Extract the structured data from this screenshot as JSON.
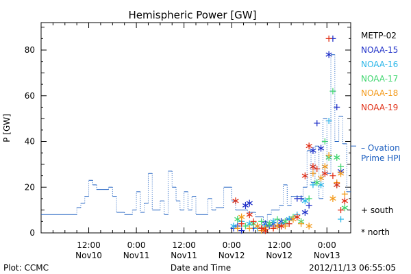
{
  "chart_data": {
    "type": "scatter",
    "title": "Hemispheric Power [GW]",
    "ylabel": "P [GW]",
    "xlabel": "Date and Time",
    "xlim": [
      0,
      78
    ],
    "ylim": [
      0,
      92
    ],
    "x_unit": "hours since Nov10 00:00",
    "x_ticks": [
      {
        "value": 12,
        "label": [
          "12:00",
          "Nov10"
        ]
      },
      {
        "value": 24,
        "label": [
          "0:00",
          "Nov11"
        ]
      },
      {
        "value": 36,
        "label": [
          "12:00",
          "Nov11"
        ]
      },
      {
        "value": 48,
        "label": [
          "0:00",
          "Nov12"
        ]
      },
      {
        "value": 60,
        "label": [
          "12:00",
          "Nov12"
        ]
      },
      {
        "value": 72,
        "label": [
          "0:00",
          "Nov13"
        ]
      }
    ],
    "y_ticks": [
      0,
      20,
      40,
      60,
      80
    ],
    "ovation": {
      "name": "Ovation Prime HPI",
      "label_lines": [
        "– Ovation",
        "Prime HPI"
      ],
      "color": "#1c5fc0",
      "steps": [
        [
          0,
          8
        ],
        [
          9,
          8
        ],
        [
          9,
          11
        ],
        [
          10,
          11
        ],
        [
          10,
          13
        ],
        [
          11,
          13
        ],
        [
          11,
          16
        ],
        [
          12,
          16
        ],
        [
          12,
          23
        ],
        [
          13,
          23
        ],
        [
          13,
          21
        ],
        [
          14,
          21
        ],
        [
          14,
          19
        ],
        [
          17,
          19
        ],
        [
          17,
          20
        ],
        [
          18,
          20
        ],
        [
          18,
          16
        ],
        [
          19,
          16
        ],
        [
          19,
          9
        ],
        [
          21,
          9
        ],
        [
          21,
          8
        ],
        [
          23,
          8
        ],
        [
          23,
          10
        ],
        [
          24,
          10
        ],
        [
          24,
          18
        ],
        [
          25,
          18
        ],
        [
          25,
          9
        ],
        [
          26,
          9
        ],
        [
          26,
          13
        ],
        [
          27,
          13
        ],
        [
          27,
          26
        ],
        [
          28,
          26
        ],
        [
          28,
          10
        ],
        [
          30,
          10
        ],
        [
          30,
          14
        ],
        [
          31,
          14
        ],
        [
          31,
          8
        ],
        [
          32,
          8
        ],
        [
          32,
          27
        ],
        [
          33,
          27
        ],
        [
          33,
          20
        ],
        [
          34,
          20
        ],
        [
          34,
          14
        ],
        [
          35,
          14
        ],
        [
          35,
          10
        ],
        [
          36,
          10
        ],
        [
          36,
          18
        ],
        [
          37,
          18
        ],
        [
          37,
          10
        ],
        [
          38,
          10
        ],
        [
          38,
          16
        ],
        [
          39,
          16
        ],
        [
          39,
          8
        ],
        [
          42,
          8
        ],
        [
          42,
          15
        ],
        [
          43,
          15
        ],
        [
          43,
          10
        ],
        [
          44,
          10
        ],
        [
          44,
          11
        ],
        [
          46,
          11
        ],
        [
          46,
          20
        ],
        [
          48,
          20
        ],
        [
          48,
          14
        ],
        [
          49,
          14
        ],
        [
          49,
          10
        ],
        [
          52,
          10
        ],
        [
          52,
          9
        ],
        [
          54,
          9
        ],
        [
          54,
          7
        ],
        [
          56,
          7
        ],
        [
          56,
          5
        ],
        [
          57,
          5
        ],
        [
          57,
          8
        ],
        [
          58,
          8
        ],
        [
          58,
          10
        ],
        [
          60,
          10
        ],
        [
          60,
          12
        ],
        [
          61,
          12
        ],
        [
          61,
          21
        ],
        [
          62,
          21
        ],
        [
          62,
          12
        ],
        [
          63,
          12
        ],
        [
          63,
          16
        ],
        [
          66,
          16
        ],
        [
          66,
          20
        ],
        [
          67,
          20
        ],
        [
          67,
          36
        ],
        [
          68,
          36
        ],
        [
          68,
          22
        ],
        [
          69,
          22
        ],
        [
          69,
          38
        ],
        [
          70,
          38
        ],
        [
          70,
          15
        ],
        [
          71,
          15
        ],
        [
          71,
          50
        ],
        [
          72,
          50
        ],
        [
          72,
          26
        ],
        [
          73,
          26
        ],
        [
          73,
          78
        ],
        [
          74,
          78
        ],
        [
          74,
          40
        ],
        [
          75,
          40
        ],
        [
          75,
          51
        ],
        [
          76,
          51
        ],
        [
          76,
          39
        ],
        [
          77,
          39
        ],
        [
          77,
          18
        ],
        [
          78,
          18
        ]
      ]
    },
    "series": [
      {
        "name": "METP-02",
        "color": "#000000",
        "points": []
      },
      {
        "name": "NOAA-15",
        "color": "#1e2fc8",
        "points": [
          [
            48.5,
            2,
            "+"
          ],
          [
            49.5,
            3,
            "+"
          ],
          [
            50.5,
            1,
            "+"
          ],
          [
            51.5,
            12,
            "*"
          ],
          [
            52.5,
            13,
            "*"
          ],
          [
            53.5,
            2,
            "+"
          ],
          [
            54.5,
            3,
            "*"
          ],
          [
            55.5,
            2,
            "+"
          ],
          [
            56.5,
            4,
            "*"
          ],
          [
            57.5,
            3,
            "+"
          ],
          [
            58.5,
            4,
            "*"
          ],
          [
            59.5,
            3,
            "+"
          ],
          [
            60.5,
            5,
            "*"
          ],
          [
            61.5,
            4,
            "+"
          ],
          [
            62.5,
            6,
            "+"
          ],
          [
            64.5,
            15,
            "+"
          ],
          [
            65.5,
            15,
            "+"
          ],
          [
            66.5,
            9,
            "*"
          ],
          [
            67.5,
            12,
            "+"
          ],
          [
            68.5,
            36,
            "*"
          ],
          [
            69.5,
            48,
            "+"
          ],
          [
            70.5,
            37,
            "*"
          ],
          [
            72.5,
            78,
            "*"
          ],
          [
            73.5,
            85,
            "+"
          ],
          [
            74.5,
            55,
            "+"
          ],
          [
            75.5,
            27,
            "*"
          ]
        ]
      },
      {
        "name": "NOAA-16",
        "color": "#2ab6e8",
        "points": [
          [
            48.5,
            3,
            "*"
          ],
          [
            50.5,
            5,
            "+"
          ],
          [
            52.5,
            4,
            "*"
          ],
          [
            54.5,
            2,
            "+"
          ],
          [
            56.5,
            3,
            "*"
          ],
          [
            58.5,
            5,
            "*"
          ],
          [
            60.5,
            4,
            "+"
          ],
          [
            62.5,
            6,
            "*"
          ],
          [
            64.5,
            8,
            "+"
          ],
          [
            66.5,
            14,
            "*"
          ],
          [
            68.5,
            21,
            "+"
          ],
          [
            70.5,
            21,
            "*"
          ],
          [
            72.5,
            49,
            "+"
          ],
          [
            74.5,
            21,
            "*"
          ],
          [
            75.5,
            6,
            "+"
          ]
        ]
      },
      {
        "name": "NOAA-17",
        "color": "#3ed66e",
        "points": [
          [
            49.5,
            6,
            "*"
          ],
          [
            51.5,
            3,
            "+"
          ],
          [
            53.5,
            4,
            "*"
          ],
          [
            55.5,
            5,
            "+"
          ],
          [
            57.5,
            4,
            "*"
          ],
          [
            59.5,
            6,
            "+"
          ],
          [
            61.5,
            5,
            "*"
          ],
          [
            63.5,
            7,
            "+"
          ],
          [
            65.5,
            5,
            "*"
          ],
          [
            67.5,
            15,
            "+"
          ],
          [
            69.5,
            22,
            "*"
          ],
          [
            71.5,
            40,
            "+"
          ],
          [
            72.5,
            33,
            "*"
          ],
          [
            73.5,
            62,
            "+"
          ],
          [
            74.5,
            33,
            "*"
          ],
          [
            75.5,
            29,
            "+"
          ],
          [
            76.5,
            11,
            "*"
          ]
        ]
      },
      {
        "name": "NOAA-18",
        "color": "#f39a1a",
        "points": [
          [
            49.5,
            2,
            "+"
          ],
          [
            50.5,
            7,
            "*"
          ],
          [
            52.5,
            2,
            "+"
          ],
          [
            54.5,
            3,
            "*"
          ],
          [
            55.5,
            1,
            "+"
          ],
          [
            56.5,
            2,
            "*"
          ],
          [
            58.5,
            2,
            "+"
          ],
          [
            59.5,
            3,
            "*"
          ],
          [
            61.5,
            3,
            "+"
          ],
          [
            63.5,
            6,
            "*"
          ],
          [
            65.5,
            4,
            "+"
          ],
          [
            67.5,
            3,
            "*"
          ],
          [
            68.5,
            26,
            "+"
          ],
          [
            70.5,
            24,
            "*"
          ],
          [
            71.5,
            29,
            "*"
          ],
          [
            72.5,
            34,
            "+"
          ],
          [
            73.5,
            15,
            "*"
          ],
          [
            74.5,
            22,
            "+"
          ],
          [
            75.5,
            26,
            "*"
          ],
          [
            76.5,
            17,
            "+"
          ]
        ]
      },
      {
        "name": "NOAA-19",
        "color": "#e02d14",
        "points": [
          [
            49,
            14,
            "*"
          ],
          [
            50.5,
            4,
            "+"
          ],
          [
            52.5,
            8,
            "*"
          ],
          [
            53.5,
            5,
            "+"
          ],
          [
            55.5,
            2,
            "+"
          ],
          [
            56.5,
            1,
            "*"
          ],
          [
            58.5,
            2,
            "+"
          ],
          [
            60.5,
            3,
            "*"
          ],
          [
            62.5,
            4,
            "+"
          ],
          [
            64.5,
            7,
            "*"
          ],
          [
            66.5,
            25,
            "*"
          ],
          [
            67.5,
            38,
            "*"
          ],
          [
            68.5,
            29,
            "*"
          ],
          [
            69.5,
            28,
            "+"
          ],
          [
            71.5,
            26,
            "*"
          ],
          [
            72.5,
            85,
            "+"
          ],
          [
            73.5,
            25,
            "+"
          ],
          [
            74.5,
            21,
            "*"
          ],
          [
            75.5,
            10,
            "+"
          ],
          [
            76.5,
            14,
            "*"
          ]
        ]
      }
    ],
    "marker_legend": [
      {
        "symbol": "+",
        "text": "south"
      },
      {
        "symbol": "*",
        "text": "north"
      }
    ]
  },
  "footer": {
    "left": "Plot: CCMC",
    "right": "2012/11/13 06:55:05"
  }
}
